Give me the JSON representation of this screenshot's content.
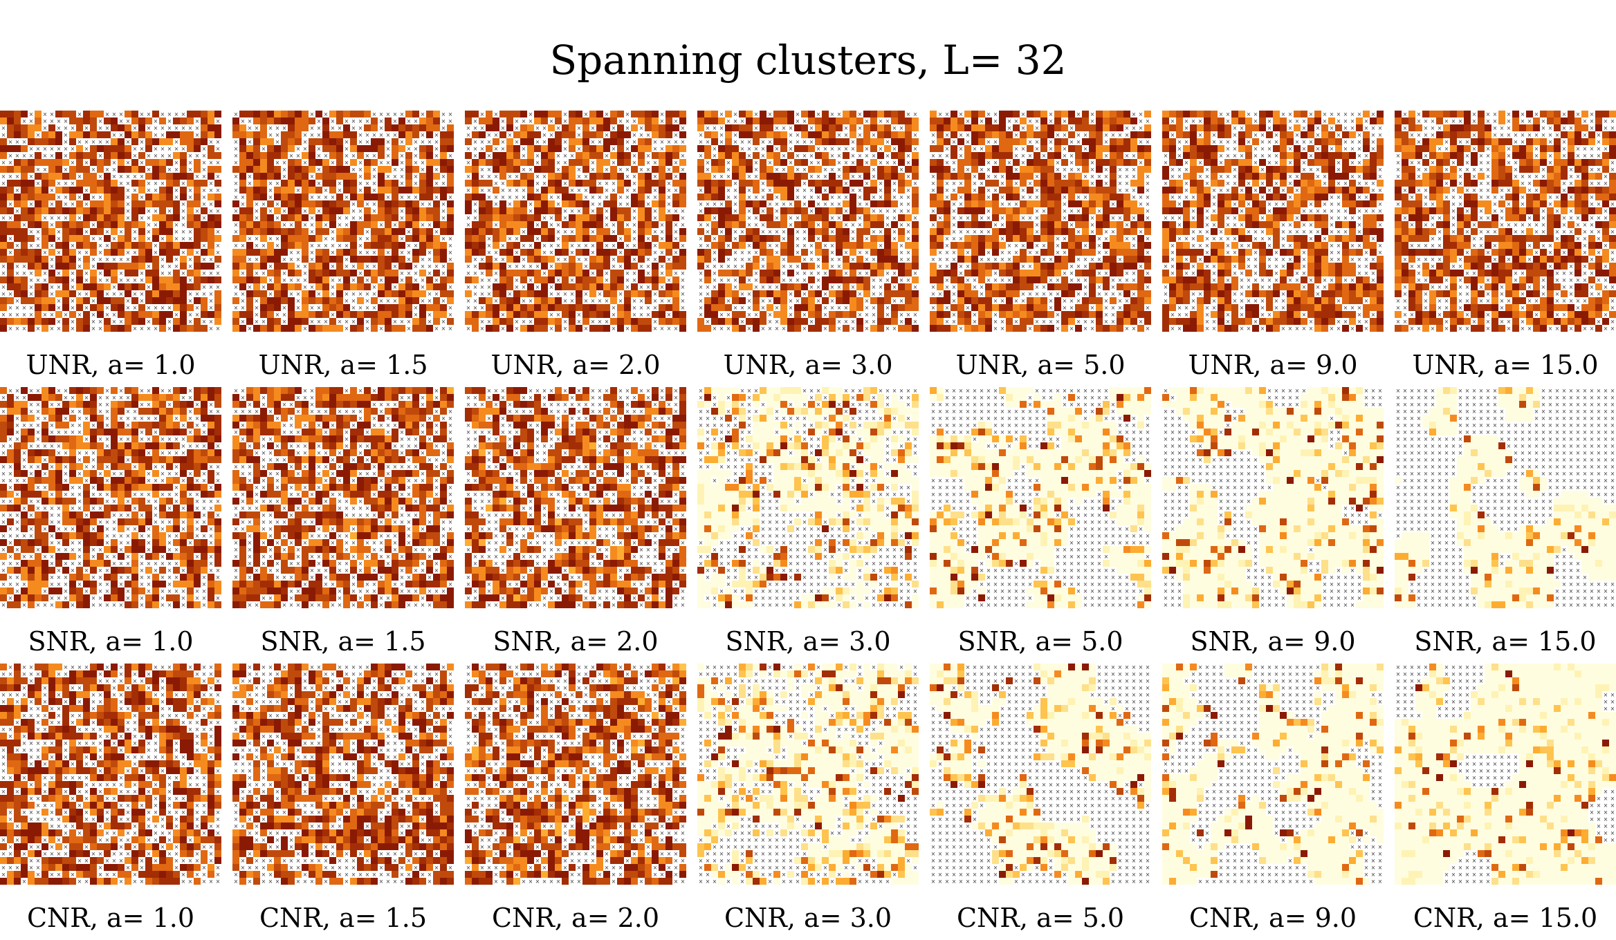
{
  "chart_data": {
    "type": "heatmap",
    "title": "Spanning clusters, L= 32",
    "lattice_size": 32,
    "cell_markers": "×",
    "colormap": [
      "#fffde0",
      "#fef3b4",
      "#fee08a",
      "#fec44f",
      "#fdac32",
      "#f58b1f",
      "#e06812",
      "#c04a0b",
      "#a32d05",
      "#8b1a04"
    ],
    "rows": [
      {
        "model": "UNR",
        "panels": [
          {
            "label": "UNR, a= 1.0",
            "a": 1.0
          },
          {
            "label": "UNR, a= 1.5",
            "a": 1.5
          },
          {
            "label": "UNR, a= 2.0",
            "a": 2.0
          },
          {
            "label": "UNR, a= 3.0",
            "a": 3.0
          },
          {
            "label": "UNR, a= 5.0",
            "a": 5.0
          },
          {
            "label": "UNR, a= 9.0",
            "a": 9.0
          },
          {
            "label": "UNR, a= 15.0",
            "a": 15.0
          }
        ]
      },
      {
        "model": "SNR",
        "panels": [
          {
            "label": "SNR, a= 1.0",
            "a": 1.0
          },
          {
            "label": "SNR, a= 1.5",
            "a": 1.5
          },
          {
            "label": "SNR, a= 2.0",
            "a": 2.0
          },
          {
            "label": "SNR, a= 3.0",
            "a": 3.0
          },
          {
            "label": "SNR, a= 5.0",
            "a": 5.0
          },
          {
            "label": "SNR, a= 9.0",
            "a": 9.0
          },
          {
            "label": "SNR, a= 15.0",
            "a": 15.0
          }
        ]
      },
      {
        "model": "CNR",
        "panels": [
          {
            "label": "CNR, a= 1.0",
            "a": 1.0
          },
          {
            "label": "CNR, a= 1.5",
            "a": 1.5
          },
          {
            "label": "CNR, a= 2.0",
            "a": 2.0
          },
          {
            "label": "CNR, a= 3.0",
            "a": 3.0
          },
          {
            "label": "CNR, a= 5.0",
            "a": 5.0
          },
          {
            "label": "CNR, a= 9.0",
            "a": 9.0
          },
          {
            "label": "CNR, a= 15.0",
            "a": 15.0
          }
        ]
      }
    ]
  }
}
